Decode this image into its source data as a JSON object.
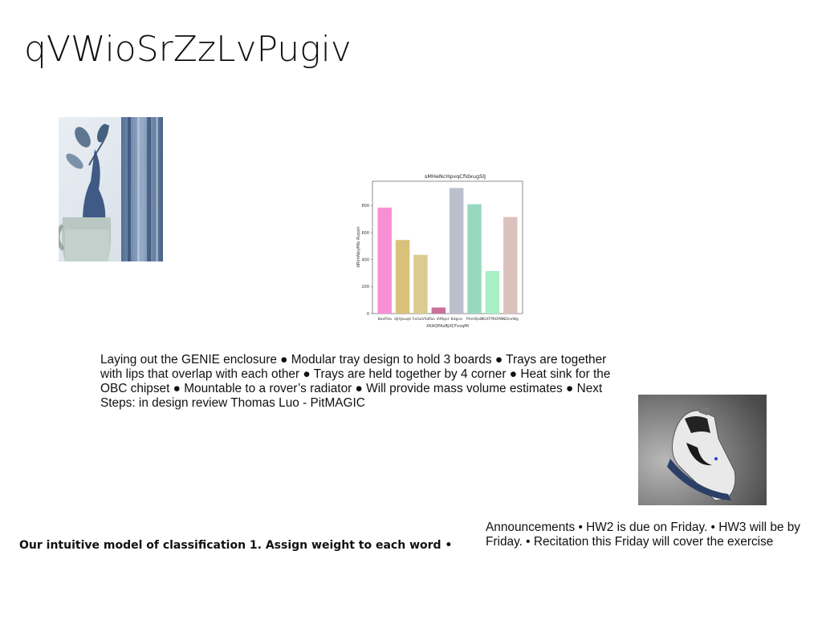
{
  "title": "qVWioSrZzLvPugiv",
  "paragraph": "Laying out the GENIE enclosure ● Modular tray design to hold 3 boards ● Trays are together with lips that overlap with each other ● Trays are held together by 4 corner ● Heat sink for the OBC chipset ● Mountable to a rover’s radiator ● Will provide mass volume estimates ● Next Steps: in design review Thomas Luo - PitMAGIC",
  "bold_line": "Our intuitive model of classification 1. Assign weight to each word •",
  "announcements": "Announcements • HW2 is due on Friday. • HW3 will be by Friday. • Recitation this Friday will cover the exercise",
  "icons": {
    "plant_photo": "plant-vase-photo",
    "shoe_photo": "sneaker-photo"
  },
  "chart_data": {
    "type": "bar",
    "title": "sMHeNcHpvqCfidxugSlJ",
    "xlabel": "XKAQPAzBjXCFxsqMi",
    "ylabel": "tIRlmNeyMib Rvpoh",
    "categories": [
      "KexPUa",
      "djrtJauqU",
      "FxGaVXz",
      "Fbo iAMqnI",
      "Kdgca",
      "PmHQxB",
      "KUtTPKOfW",
      "NDnxWg"
    ],
    "values": [
      785,
      545,
      435,
      45,
      930,
      810,
      315,
      715
    ],
    "colors": [
      "#f88fd4",
      "#d8c27a",
      "#dccb8e",
      "#c8709a",
      "#bcc0cc",
      "#98d8bf",
      "#a8efc6",
      "#dcc2bc"
    ],
    "ylim": [
      0,
      980
    ],
    "yticks": [
      0,
      200,
      400,
      600,
      800
    ]
  }
}
